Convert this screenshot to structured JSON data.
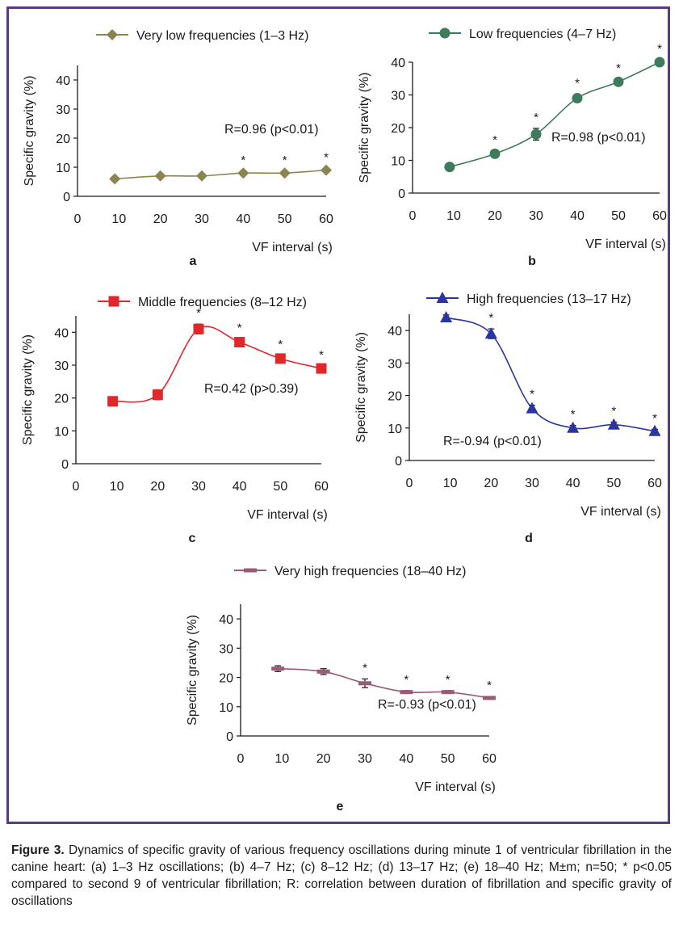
{
  "chart_data": [
    {
      "type": "line",
      "panel_label": "a",
      "series": [
        {
          "name": "Very low frequencies (1–3 Hz)",
          "color": "#8c8450",
          "marker": "diamond"
        }
      ],
      "x": [
        9,
        20,
        30,
        40,
        50,
        60
      ],
      "values": [
        6,
        7,
        7,
        8,
        8,
        9
      ],
      "errors": [
        0.6,
        0.6,
        0.6,
        0.6,
        0.6,
        0.6
      ],
      "significant": [
        false,
        false,
        false,
        true,
        true,
        true
      ],
      "xlabel": "VF interval (s)",
      "ylabel": "Specific gravity (%)",
      "xticks": [
        0,
        10,
        20,
        30,
        40,
        50,
        60
      ],
      "yticks": [
        0,
        10,
        20,
        30,
        40
      ],
      "xlim": [
        0,
        60
      ],
      "ylim": [
        0,
        45
      ],
      "annotation": "R=0.96 (p<0.01)",
      "legend": "top"
    },
    {
      "type": "line",
      "panel_label": "b",
      "series": [
        {
          "name": "Low frequencies (4–7 Hz)",
          "color": "#3e7a5c",
          "marker": "circle"
        }
      ],
      "x": [
        9,
        20,
        30,
        40,
        50,
        60
      ],
      "values": [
        8,
        12,
        18,
        29,
        34,
        40
      ],
      "errors": [
        0.6,
        0.8,
        1.8,
        1.2,
        0.8,
        0.8
      ],
      "significant": [
        false,
        true,
        true,
        true,
        true,
        true
      ],
      "xlabel": "VF interval (s)",
      "ylabel": "Specific gravity (%)",
      "xticks": [
        0,
        10,
        20,
        30,
        40,
        50,
        60
      ],
      "yticks": [
        0,
        10,
        20,
        30,
        40
      ],
      "xlim": [
        0,
        60
      ],
      "ylim": [
        0,
        40
      ],
      "annotation": "R=0.98 (p<0.01)",
      "legend": "top"
    },
    {
      "type": "line",
      "panel_label": "c",
      "series": [
        {
          "name": "Middle frequencies (8–12 Hz)",
          "color": "#e3262a",
          "marker": "square"
        }
      ],
      "x": [
        9,
        20,
        30,
        40,
        50,
        60
      ],
      "values": [
        19,
        21,
        41,
        37,
        32,
        29
      ],
      "errors": [
        0.6,
        1.5,
        1.5,
        1.0,
        1.0,
        0.8
      ],
      "significant": [
        false,
        false,
        true,
        true,
        true,
        true
      ],
      "xlabel": "VF interval (s)",
      "ylabel": "Specific gravity (%)",
      "xticks": [
        0,
        10,
        20,
        30,
        40,
        50,
        60
      ],
      "yticks": [
        0,
        10,
        20,
        30,
        40
      ],
      "xlim": [
        0,
        60
      ],
      "ylim": [
        0,
        45
      ],
      "annotation": "R=0.42 (p>0.39)",
      "legend": "top"
    },
    {
      "type": "line",
      "panel_label": "d",
      "series": [
        {
          "name": "High frequencies (13–17 Hz)",
          "color": "#2a35a0",
          "marker": "triangle"
        }
      ],
      "x": [
        9,
        20,
        30,
        40,
        50,
        60
      ],
      "values": [
        44,
        39,
        16,
        10,
        11,
        9
      ],
      "errors": [
        0.8,
        1.5,
        1.0,
        0.8,
        0.8,
        0.6
      ],
      "significant": [
        false,
        true,
        true,
        true,
        true,
        true
      ],
      "xlabel": "VF interval (s)",
      "ylabel": "Specific gravity (%)",
      "xticks": [
        0,
        10,
        20,
        30,
        40,
        50,
        60
      ],
      "yticks": [
        0,
        10,
        20,
        30,
        40
      ],
      "xlim": [
        0,
        60
      ],
      "ylim": [
        0,
        45
      ],
      "annotation": "R=-0.94 (p<0.01)",
      "legend": "top"
    },
    {
      "type": "line",
      "panel_label": "e",
      "series": [
        {
          "name": "Very high frequencies (18–40 Hz)",
          "color": "#9a5a78",
          "marker": "dash"
        }
      ],
      "x": [
        9,
        20,
        30,
        40,
        50,
        60
      ],
      "values": [
        23,
        22,
        18,
        15,
        15,
        13
      ],
      "errors": [
        1.0,
        1.0,
        1.5,
        0.5,
        0.5,
        0.5
      ],
      "significant": [
        false,
        false,
        true,
        true,
        true,
        true
      ],
      "xlabel": "VF interval (s)",
      "ylabel": "Specific gravity (%)",
      "xticks": [
        0,
        10,
        20,
        30,
        40,
        50,
        60
      ],
      "yticks": [
        0,
        10,
        20,
        30,
        40
      ],
      "xlim": [
        0,
        60
      ],
      "ylim": [
        0,
        45
      ],
      "annotation": "R=-0.93 (p<0.01)",
      "legend": "top"
    }
  ],
  "significance_mark": "*",
  "caption": {
    "label": "Figure 3.",
    "text": "Dynamics of specific gravity of various frequency oscillations during minute 1 of ventricular fibrillation in the canine heart: (a) 1–3 Hz oscillations; (b) 4–7 Hz; (c) 8–12 Hz; (d) 13–17 Hz; (e) 18–40 Hz; M±m; n=50; * p<0.05 compared to second 9 of ventricular fibrillation; R: correlation between duration of fibrillation and specific gravity of oscillations"
  }
}
